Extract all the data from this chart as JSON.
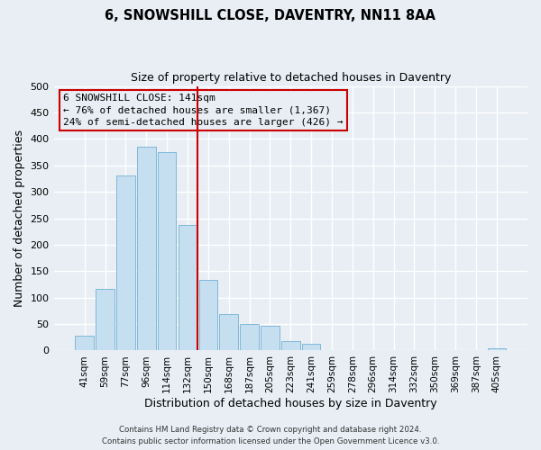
{
  "title": "6, SNOWSHILL CLOSE, DAVENTRY, NN11 8AA",
  "subtitle": "Size of property relative to detached houses in Daventry",
  "xlabel": "Distribution of detached houses by size in Daventry",
  "ylabel": "Number of detached properties",
  "bar_labels": [
    "41sqm",
    "59sqm",
    "77sqm",
    "96sqm",
    "114sqm",
    "132sqm",
    "150sqm",
    "168sqm",
    "187sqm",
    "205sqm",
    "223sqm",
    "241sqm",
    "259sqm",
    "278sqm",
    "296sqm",
    "314sqm",
    "332sqm",
    "350sqm",
    "369sqm",
    "387sqm",
    "405sqm"
  ],
  "bar_values": [
    28,
    116,
    330,
    385,
    375,
    238,
    133,
    68,
    50,
    46,
    18,
    13,
    0,
    0,
    0,
    0,
    0,
    0,
    0,
    0,
    5
  ],
  "bar_color": "#c5dff0",
  "bar_edge_color": "#7fb8d8",
  "bg_color": "#e8eef4",
  "grid_color": "#ffffff",
  "vline_x_index": 5.5,
  "vline_color": "#cc0000",
  "annotation_title": "6 SNOWSHILL CLOSE: 141sqm",
  "annotation_line1": "← 76% of detached houses are smaller (1,367)",
  "annotation_line2": "24% of semi-detached houses are larger (426) →",
  "annotation_box_color": "#cc0000",
  "ylim": [
    0,
    500
  ],
  "yticks": [
    0,
    50,
    100,
    150,
    200,
    250,
    300,
    350,
    400,
    450,
    500
  ],
  "footer1": "Contains HM Land Registry data © Crown copyright and database right 2024.",
  "footer2": "Contains public sector information licensed under the Open Government Licence v3.0."
}
